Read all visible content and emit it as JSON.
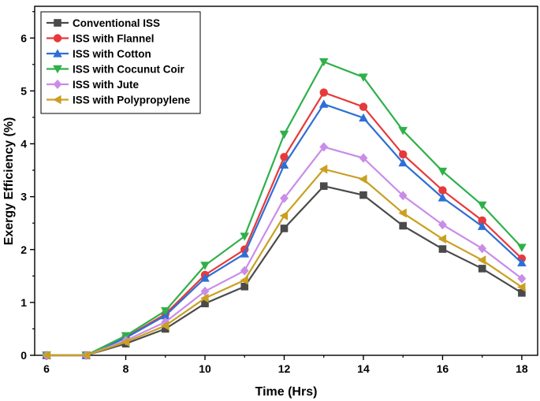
{
  "chart_data": {
    "type": "line",
    "xlabel": "Time (Hrs)",
    "ylabel": "Exergy Efficiency (%)",
    "xlim": [
      5.7,
      18.4
    ],
    "ylim": [
      0,
      6.6
    ],
    "xticks": [
      6,
      8,
      10,
      12,
      14,
      16,
      18
    ],
    "yticks": [
      0,
      1,
      2,
      3,
      4,
      5,
      6
    ],
    "grid": false,
    "legend_position": "top-left",
    "x": [
      6,
      7,
      8,
      9,
      10,
      11,
      12,
      13,
      14,
      15,
      16,
      17,
      18
    ],
    "series": [
      {
        "name": "Conventional ISS",
        "color": "#4a4a4a",
        "marker": "square",
        "values": [
          0,
          0,
          0.22,
          0.5,
          0.98,
          1.3,
          2.4,
          3.2,
          3.03,
          2.45,
          2.01,
          1.64,
          1.18
        ]
      },
      {
        "name": "ISS with Flannel",
        "color": "#e8393a",
        "marker": "circle",
        "values": [
          0,
          0,
          0.34,
          0.78,
          1.52,
          2.0,
          3.75,
          4.97,
          4.7,
          3.8,
          3.12,
          2.55,
          1.83
        ]
      },
      {
        "name": "ISS with Cotton",
        "color": "#2d6fd6",
        "marker": "triangle-up",
        "values": [
          0,
          0,
          0.33,
          0.75,
          1.46,
          1.92,
          3.6,
          4.75,
          4.49,
          3.64,
          2.98,
          2.44,
          1.75
        ]
      },
      {
        "name": "ISS with Cocunut Coir",
        "color": "#2fb04a",
        "marker": "triangle-down",
        "values": [
          0,
          0,
          0.37,
          0.84,
          1.7,
          2.25,
          4.18,
          5.55,
          5.26,
          4.25,
          3.48,
          2.84,
          2.04
        ]
      },
      {
        "name": "ISS with Jute",
        "color": "#c98de8",
        "marker": "diamond",
        "values": [
          0,
          0,
          0.28,
          0.63,
          1.21,
          1.6,
          2.97,
          3.94,
          3.73,
          3.02,
          2.47,
          2.02,
          1.45
        ]
      },
      {
        "name": "ISS with Polypropylene",
        "color": "#c9a021",
        "marker": "triangle-left",
        "values": [
          0,
          0,
          0.25,
          0.56,
          1.08,
          1.42,
          2.64,
          3.52,
          3.33,
          2.69,
          2.2,
          1.8,
          1.29
        ]
      }
    ]
  }
}
